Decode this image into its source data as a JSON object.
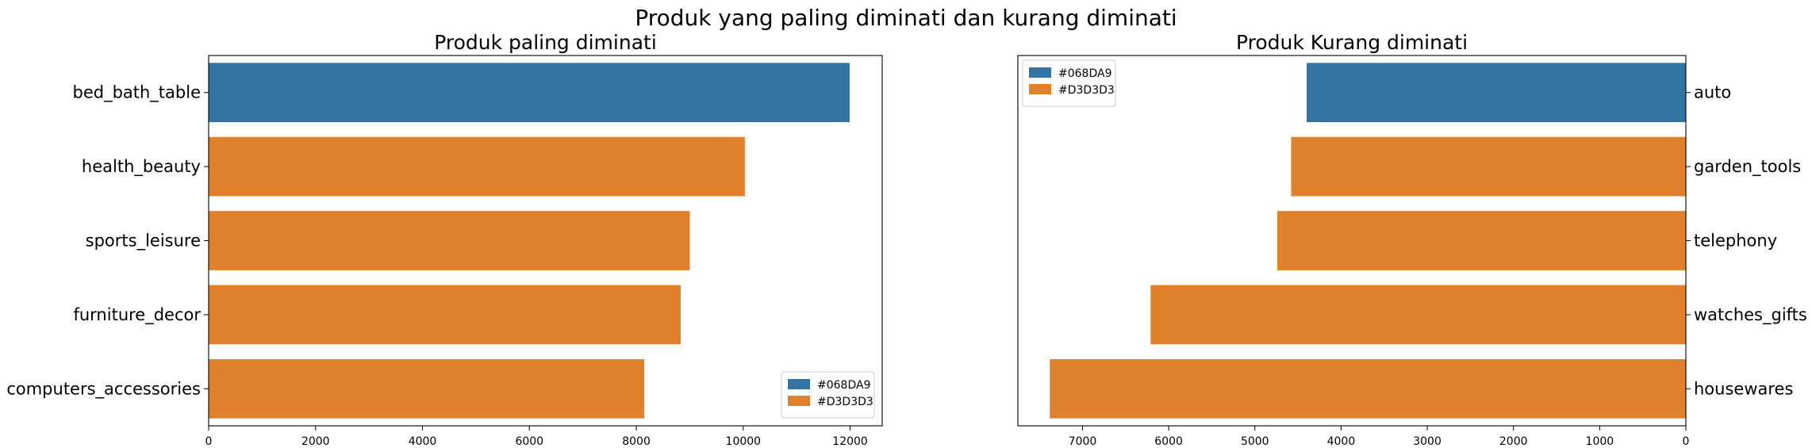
{
  "figure": {
    "suptitle": "Produk yang paling diminati dan kurang diminati"
  },
  "chart_data": [
    {
      "type": "bar",
      "orientation": "horizontal",
      "title": "Produk paling diminati",
      "xlabel": "",
      "ylabel": "",
      "categories": [
        "bed_bath_table",
        "health_beauty",
        "sports_leisure",
        "furniture_decor",
        "computers_accessories"
      ],
      "values": [
        11990,
        10030,
        9000,
        8830,
        8150
      ],
      "bar_colors": [
        "#3274a1",
        "#e1812c",
        "#e1812c",
        "#e1812c",
        "#e1812c"
      ],
      "xlim": [
        0,
        12600
      ],
      "xticks": [
        0,
        2000,
        4000,
        6000,
        8000,
        10000,
        12000
      ],
      "x_inverted": false,
      "category_axis_side": "left",
      "grid": false,
      "legend": {
        "position": "lower-right",
        "entries": [
          {
            "label": "#068DA9",
            "color": "#3274a1"
          },
          {
            "label": "#D3D3D3",
            "color": "#e1812c"
          }
        ]
      }
    },
    {
      "type": "bar",
      "orientation": "horizontal",
      "title": "Produk Kurang diminati",
      "xlabel": "",
      "ylabel": "",
      "categories": [
        "auto",
        "garden_tools",
        "telephony",
        "watches_gifts",
        "housewares"
      ],
      "values": [
        4400,
        4580,
        4740,
        6210,
        7380
      ],
      "bar_colors": [
        "#3274a1",
        "#e1812c",
        "#e1812c",
        "#e1812c",
        "#e1812c"
      ],
      "xlim": [
        7750,
        0
      ],
      "xticks": [
        7000,
        6000,
        5000,
        4000,
        3000,
        2000,
        1000,
        0
      ],
      "x_inverted": true,
      "category_axis_side": "right",
      "grid": false,
      "legend": {
        "position": "upper-left",
        "entries": [
          {
            "label": "#068DA9",
            "color": "#3274a1"
          },
          {
            "label": "#D3D3D3",
            "color": "#e1812c"
          }
        ]
      }
    }
  ]
}
